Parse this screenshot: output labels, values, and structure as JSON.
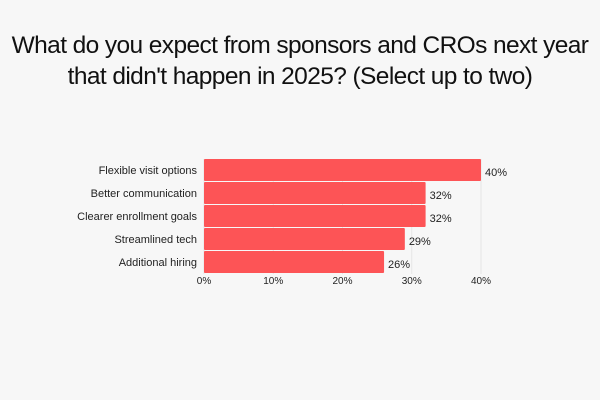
{
  "chart_data": {
    "type": "bar",
    "orientation": "horizontal",
    "title": "What do you expect from sponsors and CROs next year that didn't happen in 2025? (Select up to two)",
    "categories": [
      "Flexible visit options",
      "Better communication",
      "Clearer enrollment goals",
      "Streamlined tech",
      "Additional hiring"
    ],
    "values": [
      40,
      32,
      32,
      29,
      26
    ],
    "value_labels": [
      "40%",
      "32%",
      "32%",
      "29%",
      "26%"
    ],
    "xlim": [
      0,
      40
    ],
    "xticks": [
      0,
      10,
      20,
      30,
      40
    ],
    "xtick_labels": [
      "0%",
      "10%",
      "20%",
      "30%",
      "40%"
    ],
    "xlabel": "",
    "ylabel": "",
    "grid": true,
    "bar_color": "#fd5456"
  }
}
